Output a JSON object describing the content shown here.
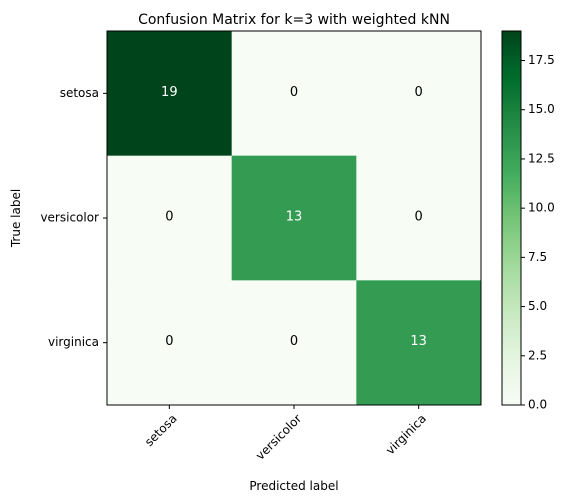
{
  "chart_data": {
    "type": "heatmap",
    "title": "Confusion Matrix for k=3 with weighted kNN",
    "xlabel": "Predicted label",
    "ylabel": "True label",
    "x_categories": [
      "setosa",
      "versicolor",
      "virginica"
    ],
    "y_categories": [
      "setosa",
      "versicolor",
      "virginica"
    ],
    "values": [
      [
        19,
        0,
        0
      ],
      [
        0,
        13,
        0
      ],
      [
        0,
        0,
        13
      ]
    ],
    "colormap": "Greens",
    "colorbar_range": [
      0,
      19
    ],
    "colorbar_ticks": [
      "0.0",
      "2.5",
      "5.0",
      "7.5",
      "10.0",
      "12.5",
      "15.0",
      "17.5"
    ],
    "cell_text_color_dark": "#000000",
    "cell_text_color_light": "#ffffff"
  }
}
